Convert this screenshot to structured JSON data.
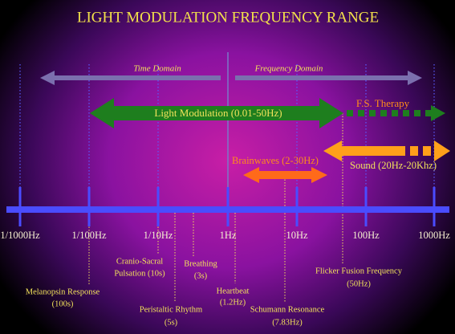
{
  "title": "LIGHT MODULATION FREQUENCY RANGE",
  "axis": {
    "ticks": [
      "1/1000Hz",
      "1/100Hz",
      "1/10Hz",
      "1Hz",
      "10Hz",
      "100Hz",
      "1000Hz"
    ]
  },
  "domains": {
    "time": "Time Domain",
    "frequency": "Frequency Domain"
  },
  "ranges": {
    "light_modulation": "Light Modulation (0.01-50Hz)",
    "fs_therapy": "F.S. Therapy",
    "sound": "Sound (20Hz-20Khz)",
    "brainwaves": "Brainwaves (2-30Hz)"
  },
  "annotations": [
    {
      "lines": [
        "Melanopsin Response",
        "(100s)"
      ]
    },
    {
      "lines": [
        "Cranio-Sacral",
        "Pulsation (10s)"
      ]
    },
    {
      "lines": [
        "Breathing",
        "(3s)"
      ]
    },
    {
      "lines": [
        "Peristaltic Rhythm",
        "(5s)"
      ]
    },
    {
      "lines": [
        "Heartbeat",
        "(1.2Hz)"
      ]
    },
    {
      "lines": [
        "Schumann Resonance",
        "(7.83Hz)"
      ]
    },
    {
      "lines": [
        "Flicker Fusion Frequency",
        "(50Hz)"
      ]
    }
  ]
}
